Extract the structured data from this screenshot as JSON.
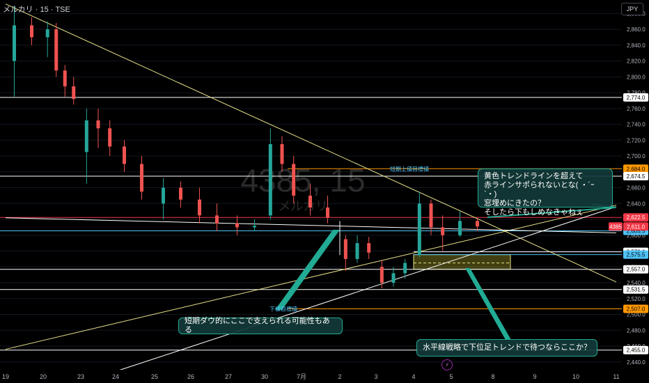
{
  "header": {
    "symbol_line": "メルカリ · 15 · TSE"
  },
  "currency_button": "JPY",
  "watermark": {
    "ticker": "4385, 15",
    "name": "メルカリ"
  },
  "colors": {
    "background": "#000000",
    "up_candle": "#26a69a",
    "down_candle": "#ef5350",
    "yellow_trend": "#e9e38a",
    "white_level": "#ffffff",
    "red_level": "#f23645",
    "blue_level": "#4fc3f7",
    "orange_level": "#ff9800",
    "teal_note": "#22ab94"
  },
  "chart_data": {
    "type": "candlestick",
    "title": "メルカリ · 15 · TSE",
    "ylabel": "JPY",
    "ylim": [
      2431,
      2897
    ],
    "y_ticks": [
      2880.0,
      2860.0,
      2840.0,
      2820.0,
      2800.0,
      2780.0,
      2760.0,
      2740.0,
      2720.0,
      2700.0,
      2680.0,
      2660.0,
      2640.0,
      2620.0,
      2600.0,
      2580.0,
      2560.0,
      2540.0,
      2520.0,
      2500.0,
      2480.0,
      2460.0,
      2440.0
    ],
    "x_ticks": [
      "19",
      "20",
      "23",
      "24",
      "25",
      "26",
      "27",
      "30",
      "7月",
      "2",
      "3",
      "4",
      "5",
      "8",
      "9",
      "10",
      "11"
    ],
    "last_price": {
      "ticker": "4385",
      "value": 2611.0
    },
    "price_levels": [
      {
        "value": 2774.0,
        "color": "white"
      },
      {
        "value": 2684.0,
        "color": "orange",
        "label": "短期上値目標値"
      },
      {
        "value": 2674.5,
        "color": "white"
      },
      {
        "value": 2622.5,
        "color": "red"
      },
      {
        "value": 2605.5,
        "color": "blue"
      },
      {
        "value": 2579.0,
        "color": "white"
      },
      {
        "value": 2575.5,
        "color": "blue"
      },
      {
        "value": 2557.0,
        "color": "white"
      },
      {
        "value": 2531.5,
        "color": "white"
      },
      {
        "value": 2507.0,
        "color": "orange",
        "label": "下値目標値"
      },
      {
        "value": 2455.0,
        "color": "white"
      }
    ],
    "level_labels": [
      "2,774.0",
      "2,684.0",
      "2,674.5",
      "2,622.5",
      "2,611.0",
      "2,605.5",
      "2,579.0",
      "2,575.5",
      "2,557.0",
      "2,531.5",
      "2,507.0",
      "2,455.0"
    ],
    "trendlines": [
      {
        "color": "yellow",
        "from": [
          "19",
          2892
        ],
        "to": [
          "11",
          2541
        ]
      },
      {
        "color": "yellow",
        "from": [
          "19",
          2456
        ],
        "to": [
          "11",
          2638
        ]
      },
      {
        "color": "white",
        "from": [
          "24",
          2428
        ],
        "to": [
          "11",
          2636
        ]
      },
      {
        "color": "white",
        "from": [
          "19",
          2622
        ],
        "to": [
          "11",
          2603
        ]
      }
    ],
    "zone": {
      "from": 2575.5,
      "to": 2557.0,
      "mid_dashed": 2565.0
    },
    "series": [
      {
        "day": "19",
        "o": 2820,
        "h": 2890,
        "l": 2775,
        "c": 2865
      },
      {
        "day": "19",
        "o": 2865,
        "h": 2875,
        "l": 2840,
        "c": 2850
      },
      {
        "day": "20",
        "o": 2850,
        "h": 2870,
        "l": 2825,
        "c": 2860
      },
      {
        "day": "20",
        "o": 2860,
        "h": 2868,
        "l": 2800,
        "c": 2808
      },
      {
        "day": "20",
        "o": 2808,
        "h": 2815,
        "l": 2775,
        "c": 2788
      },
      {
        "day": "20",
        "o": 2788,
        "h": 2800,
        "l": 2765,
        "c": 2772
      },
      {
        "day": "23",
        "o": 2705,
        "h": 2760,
        "l": 2665,
        "c": 2745
      },
      {
        "day": "23",
        "o": 2745,
        "h": 2760,
        "l": 2710,
        "c": 2735
      },
      {
        "day": "23",
        "o": 2735,
        "h": 2745,
        "l": 2700,
        "c": 2712
      },
      {
        "day": "24",
        "o": 2712,
        "h": 2720,
        "l": 2680,
        "c": 2690
      },
      {
        "day": "24",
        "o": 2690,
        "h": 2700,
        "l": 2645,
        "c": 2655
      },
      {
        "day": "25",
        "o": 2640,
        "h": 2672,
        "l": 2620,
        "c": 2660
      },
      {
        "day": "25",
        "o": 2660,
        "h": 2668,
        "l": 2635,
        "c": 2645
      },
      {
        "day": "26",
        "o": 2645,
        "h": 2660,
        "l": 2615,
        "c": 2625
      },
      {
        "day": "26",
        "o": 2625,
        "h": 2640,
        "l": 2605,
        "c": 2615
      },
      {
        "day": "27",
        "o": 2615,
        "h": 2625,
        "l": 2600,
        "c": 2610
      },
      {
        "day": "27",
        "o": 2610,
        "h": 2620,
        "l": 2605,
        "c": 2612
      },
      {
        "day": "30",
        "o": 2625,
        "h": 2735,
        "l": 2620,
        "c": 2715
      },
      {
        "day": "30",
        "o": 2715,
        "h": 2725,
        "l": 2680,
        "c": 2690
      },
      {
        "day": "30",
        "o": 2690,
        "h": 2700,
        "l": 2640,
        "c": 2650
      },
      {
        "day": "7月",
        "o": 2650,
        "h": 2665,
        "l": 2625,
        "c": 2635
      },
      {
        "day": "7月",
        "o": 2635,
        "h": 2650,
        "l": 2615,
        "c": 2622
      },
      {
        "day": "2",
        "o": 2595,
        "h": 2600,
        "l": 2555,
        "c": 2570
      },
      {
        "day": "2",
        "o": 2570,
        "h": 2600,
        "l": 2565,
        "c": 2590
      },
      {
        "day": "2",
        "o": 2590,
        "h": 2598,
        "l": 2570,
        "c": 2578
      },
      {
        "day": "3",
        "o": 2560,
        "h": 2568,
        "l": 2533,
        "c": 2540
      },
      {
        "day": "3",
        "o": 2540,
        "h": 2560,
        "l": 2535,
        "c": 2552
      },
      {
        "day": "3",
        "o": 2552,
        "h": 2570,
        "l": 2545,
        "c": 2565
      },
      {
        "day": "4",
        "o": 2575,
        "h": 2655,
        "l": 2572,
        "c": 2640
      },
      {
        "day": "4",
        "o": 2640,
        "h": 2645,
        "l": 2600,
        "c": 2610
      },
      {
        "day": "4",
        "o": 2610,
        "h": 2625,
        "l": 2580,
        "c": 2600
      },
      {
        "day": "5",
        "o": 2600,
        "h": 2630,
        "l": 2598,
        "c": 2618
      },
      {
        "day": "5",
        "o": 2618,
        "h": 2622,
        "l": 2605,
        "c": 2611
      }
    ]
  },
  "annotations": {
    "note1": "黄色トレンドラインを超えて\n赤ラインサポられないとな( ・´ｰ`・)\n窓埋めにきたの？\nそしたら下もしめなきゃねぇ",
    "note2": "短期ダウ的にここで支えられる可能性もある",
    "note3": "水平線戦略で下位足トレンドで待つならここか？"
  }
}
